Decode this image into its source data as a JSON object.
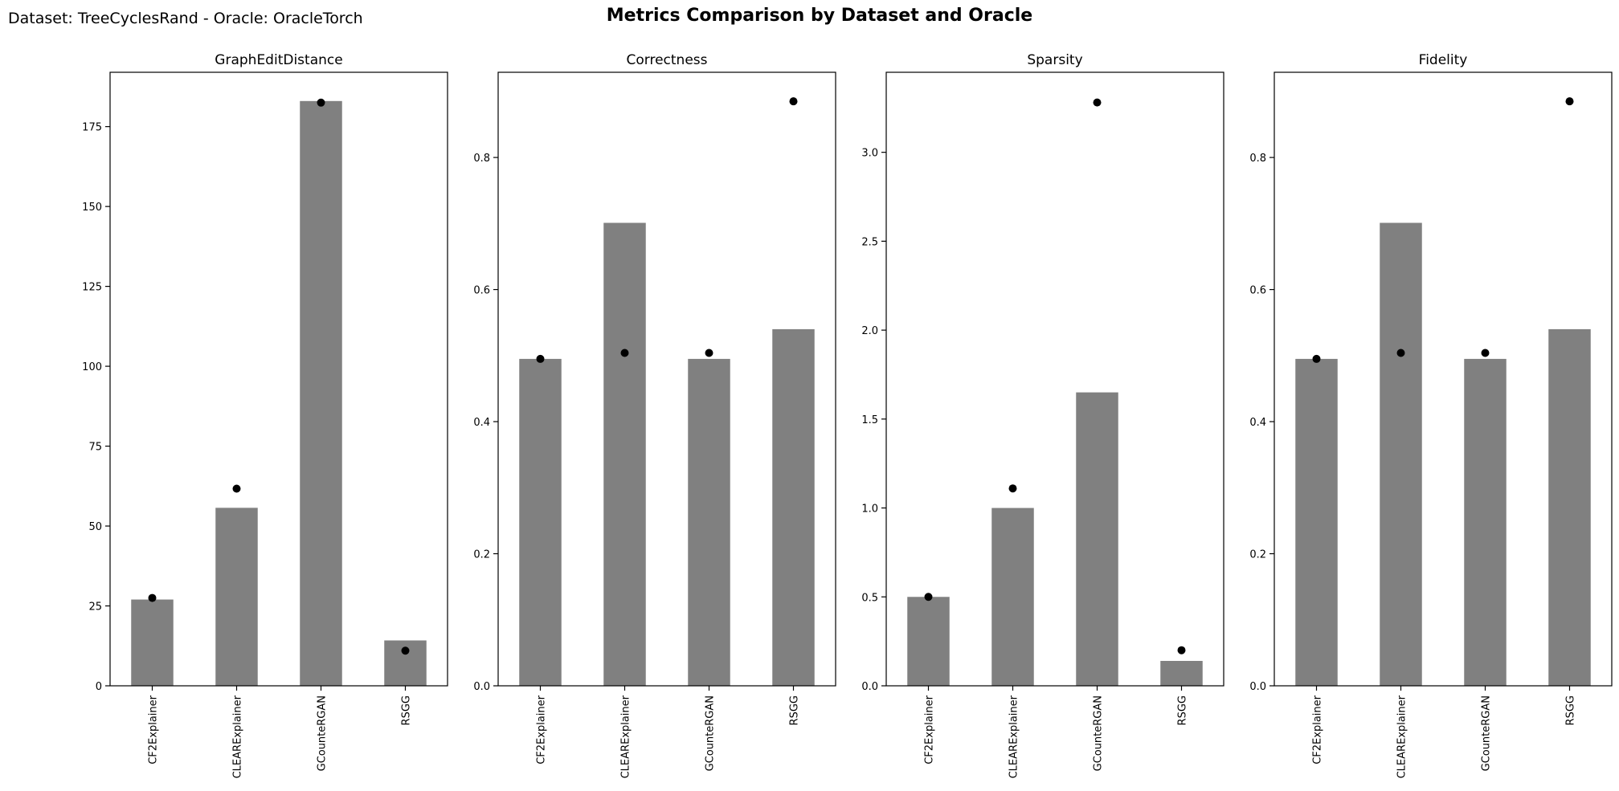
{
  "figure": {
    "suptitle": "Metrics Comparison by Dataset and Oracle",
    "left_title": "Dataset: TreeCyclesRand - Oracle: OracleTorch"
  },
  "colors": {
    "bar": "#808080",
    "point": "#000000",
    "frame": "#000000",
    "background": "#ffffff"
  },
  "chart_data": [
    {
      "type": "bar",
      "title": "GraphEditDistance",
      "categories": [
        "CF2Explainer",
        "CLEARExplainer",
        "GCounteRGAN",
        "RSGG"
      ],
      "values": [
        27,
        55.7,
        183,
        14.2
      ],
      "points": [
        27.5,
        61.7,
        182.5,
        11
      ],
      "ylim": [
        0,
        192
      ],
      "yticks": [
        0,
        25,
        50,
        75,
        100,
        125,
        150,
        175
      ],
      "ytick_labels": [
        "0",
        "25",
        "50",
        "75",
        "100",
        "125",
        "150",
        "175"
      ],
      "grid": false,
      "legend": "none"
    },
    {
      "type": "bar",
      "title": "Correctness",
      "categories": [
        "CF2Explainer",
        "CLEARExplainer",
        "GCounteRGAN",
        "RSGG"
      ],
      "values": [
        0.495,
        0.701,
        0.495,
        0.54
      ],
      "points": [
        0.495,
        0.504,
        0.504,
        0.885
      ],
      "ylim": [
        0,
        0.929
      ],
      "yticks": [
        0.0,
        0.2,
        0.4,
        0.6,
        0.8
      ],
      "ytick_labels": [
        "0.0",
        "0.2",
        "0.4",
        "0.6",
        "0.8"
      ],
      "grid": false,
      "legend": "none"
    },
    {
      "type": "bar",
      "title": "Sparsity",
      "categories": [
        "CF2Explainer",
        "CLEARExplainer",
        "GCounteRGAN",
        "RSGG"
      ],
      "values": [
        0.5,
        1.0,
        1.65,
        0.14
      ],
      "points": [
        0.5,
        1.11,
        3.28,
        0.2
      ],
      "ylim": [
        0,
        3.45
      ],
      "yticks": [
        0.0,
        0.5,
        1.0,
        1.5,
        2.0,
        2.5,
        3.0
      ],
      "ytick_labels": [
        "0.0",
        "0.5",
        "1.0",
        "1.5",
        "2.0",
        "2.5",
        "3.0"
      ],
      "grid": false,
      "legend": "none"
    },
    {
      "type": "bar",
      "title": "Fidelity",
      "categories": [
        "CF2Explainer",
        "CLEARExplainer",
        "GCounteRGAN",
        "RSGG"
      ],
      "values": [
        0.495,
        0.701,
        0.495,
        0.54
      ],
      "points": [
        0.495,
        0.504,
        0.504,
        0.885
      ],
      "ylim": [
        0,
        0.929
      ],
      "yticks": [
        0.0,
        0.2,
        0.4,
        0.6,
        0.8
      ],
      "ytick_labels": [
        "0.0",
        "0.2",
        "0.4",
        "0.6",
        "0.8"
      ],
      "grid": false,
      "legend": "none"
    }
  ]
}
